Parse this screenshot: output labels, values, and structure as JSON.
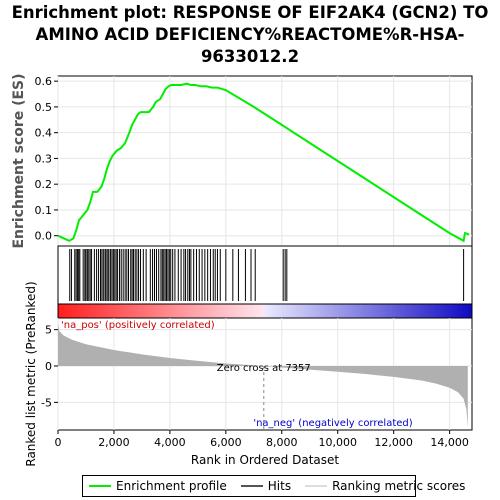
{
  "title_lines": [
    "Enrichment plot: RESPONSE OF EIF2AK4 (GCN2) TO",
    "AMINO ACID DEFICIENCY%REACTOME%R-HSA-",
    "9633012.2"
  ],
  "colors": {
    "enrichment_line": "#00ee00",
    "hits": "#000000",
    "metric_fill": "#b0b0b0",
    "zero_line": "#888888",
    "pos_label": "#cc0000",
    "neg_label": "#0000cc"
  },
  "chart_data": [
    {
      "type": "line",
      "name": "enrichment",
      "ylabel": "Enrichment score (ES)",
      "xlim": [
        0,
        14800
      ],
      "ylim": [
        -0.04,
        0.62
      ],
      "yticks": [
        0.0,
        0.1,
        0.2,
        0.3,
        0.4,
        0.5,
        0.6
      ],
      "ytick_labels": [
        "0.0",
        "0.1",
        "0.2",
        "0.3",
        "0.4",
        "0.5",
        "0.6"
      ],
      "grid": true,
      "series": [
        {
          "name": "Enrichment profile",
          "x": [
            0,
            200,
            400,
            550,
            650,
            750,
            900,
            1050,
            1150,
            1250,
            1400,
            1550,
            1650,
            1750,
            1850,
            1950,
            2100,
            2250,
            2400,
            2550,
            2650,
            2750,
            2850,
            2950,
            3100,
            3250,
            3400,
            3500,
            3650,
            3750,
            3850,
            3950,
            4050,
            4200,
            4400,
            4600,
            4750,
            4900,
            5100,
            5300,
            5500,
            5700,
            6000,
            7000,
            8000,
            9000,
            10000,
            11000,
            12000,
            13000,
            14000,
            14500,
            14550,
            14700
          ],
          "y": [
            0.0,
            -0.01,
            -0.02,
            -0.01,
            0.02,
            0.06,
            0.08,
            0.1,
            0.13,
            0.17,
            0.17,
            0.19,
            0.22,
            0.26,
            0.29,
            0.31,
            0.33,
            0.34,
            0.36,
            0.4,
            0.43,
            0.45,
            0.47,
            0.48,
            0.48,
            0.48,
            0.5,
            0.52,
            0.53,
            0.55,
            0.57,
            0.58,
            0.585,
            0.585,
            0.585,
            0.59,
            0.585,
            0.585,
            0.58,
            0.58,
            0.575,
            0.575,
            0.565,
            0.5,
            0.43,
            0.36,
            0.29,
            0.22,
            0.15,
            0.08,
            0.01,
            -0.02,
            0.01,
            0.005
          ]
        }
      ]
    },
    {
      "type": "scatter",
      "name": "hits",
      "x": [
        420,
        480,
        600,
        650,
        700,
        740,
        780,
        900,
        960,
        1000,
        1050,
        1100,
        1150,
        1200,
        1300,
        1380,
        1450,
        1520,
        1570,
        1620,
        1680,
        1720,
        1780,
        1820,
        1880,
        1930,
        1980,
        2030,
        2080,
        2130,
        2200,
        2260,
        2330,
        2400,
        2460,
        2520,
        2600,
        2650,
        2700,
        2760,
        2820,
        2880,
        2950,
        3050,
        3150,
        3300,
        3380,
        3450,
        3520,
        3600,
        3680,
        3730,
        3780,
        3830,
        3880,
        3930,
        3980,
        4030,
        4100,
        4180,
        4300,
        4400,
        4500,
        4560,
        4640,
        4700,
        4750,
        4850,
        4950,
        5050,
        5150,
        5250,
        5350,
        5450,
        5550,
        5620,
        5700,
        5800,
        6000,
        6250,
        6450,
        6700,
        6900,
        7050,
        8050,
        8120,
        8180,
        14500
      ]
    },
    {
      "type": "area",
      "name": "ranked_metric",
      "ylabel": "Ranked list metric (PreRanked)",
      "xlabel": "Rank in Ordered Dataset",
      "xlim": [
        0,
        14800
      ],
      "ylim": [
        -8.8,
        6.6
      ],
      "yticks": [
        -5,
        0,
        5
      ],
      "ytick_labels": [
        "-5",
        "0",
        "5"
      ],
      "xticks": [
        0,
        2000,
        4000,
        6000,
        8000,
        10000,
        12000,
        14000
      ],
      "xtick_labels": [
        "0",
        "2,000",
        "4,000",
        "6,000",
        "8,000",
        "10,000",
        "12,000",
        "14,000"
      ],
      "x": [
        0,
        50,
        200,
        500,
        1000,
        2000,
        3000,
        4000,
        5000,
        6000,
        7000,
        7357,
        8000,
        9000,
        10000,
        11000,
        12000,
        13000,
        13500,
        14000,
        14300,
        14500,
        14600,
        14650
      ],
      "y": [
        5.8,
        4.8,
        4.2,
        3.6,
        3.0,
        2.2,
        1.6,
        1.1,
        0.7,
        0.35,
        0.1,
        0.0,
        -0.2,
        -0.5,
        -0.8,
        -1.1,
        -1.5,
        -2.0,
        -2.4,
        -3.0,
        -3.6,
        -4.5,
        -6.0,
        -8.5
      ],
      "zero_cross": 7357,
      "annotations": {
        "pos": "'na_pos' (positively correlated)",
        "neg": "'na_neg' (negatively correlated)",
        "zero": "Zero cross at 7357"
      }
    }
  ],
  "legend": {
    "items": [
      "Enrichment profile",
      "Hits",
      "Ranking metric scores"
    ]
  }
}
